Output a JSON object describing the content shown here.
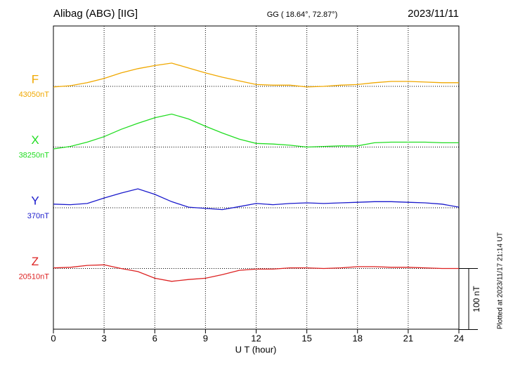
{
  "chart_data": {
    "type": "line",
    "title": "Alibag (ABG)  [IIG]",
    "subtitle": "GG ( 18.64°,  72.87°)",
    "date": "2023/11/11",
    "x_label": "U T (hour)",
    "footnote": "Plotted at 2023/11/17 21:14 UT",
    "scale_bar": {
      "value": 100,
      "label": "100 nT"
    },
    "xlim": [
      0,
      24
    ],
    "xticks": [
      0,
      3,
      6,
      9,
      12,
      15,
      18,
      21,
      24
    ],
    "x": [
      0,
      1,
      2,
      3,
      4,
      5,
      6,
      7,
      8,
      9,
      10,
      11,
      12,
      13,
      14,
      15,
      16,
      17,
      18,
      19,
      20,
      21,
      22,
      23,
      24
    ],
    "series": [
      {
        "name": "F",
        "color": "#f0a800",
        "baseline": {
          "value": 43050,
          "label": "43050nT"
        },
        "values": [
          43049,
          43051,
          43056,
          43063,
          43072,
          43079,
          43084,
          43088,
          43080,
          43072,
          43065,
          43059,
          43053,
          43052,
          43052,
          43049,
          43050,
          43052,
          43053,
          43056,
          43058,
          43058,
          43057,
          43056,
          43056
        ]
      },
      {
        "name": "X",
        "color": "#22dd22",
        "baseline": {
          "value": 38250,
          "label": "38250nT"
        },
        "values": [
          38247,
          38251,
          38258,
          38267,
          38279,
          38289,
          38298,
          38304,
          38296,
          38284,
          38273,
          38263,
          38256,
          38255,
          38253,
          38250,
          38251,
          38252,
          38252,
          38257,
          38258,
          38258,
          38258,
          38257,
          38257
        ]
      },
      {
        "name": "Y",
        "color": "#1a1acc",
        "baseline": {
          "value": 370,
          "label": "370nT"
        },
        "values": [
          376,
          375,
          377,
          386,
          394,
          401,
          392,
          380,
          371,
          369,
          367,
          372,
          377,
          375,
          377,
          378,
          377,
          378,
          379,
          380,
          380,
          379,
          378,
          376,
          371
        ]
      },
      {
        "name": "Z",
        "color": "#dd2222",
        "baseline": {
          "value": 20510,
          "label": "20510nT"
        },
        "values": [
          20511,
          20512,
          20515,
          20516,
          20510,
          20505,
          20494,
          20489,
          20492,
          20494,
          20500,
          20507,
          20509,
          20509,
          20511,
          20511,
          20510,
          20511,
          20513,
          20513,
          20512,
          20512,
          20511,
          20510,
          20510
        ]
      }
    ]
  }
}
